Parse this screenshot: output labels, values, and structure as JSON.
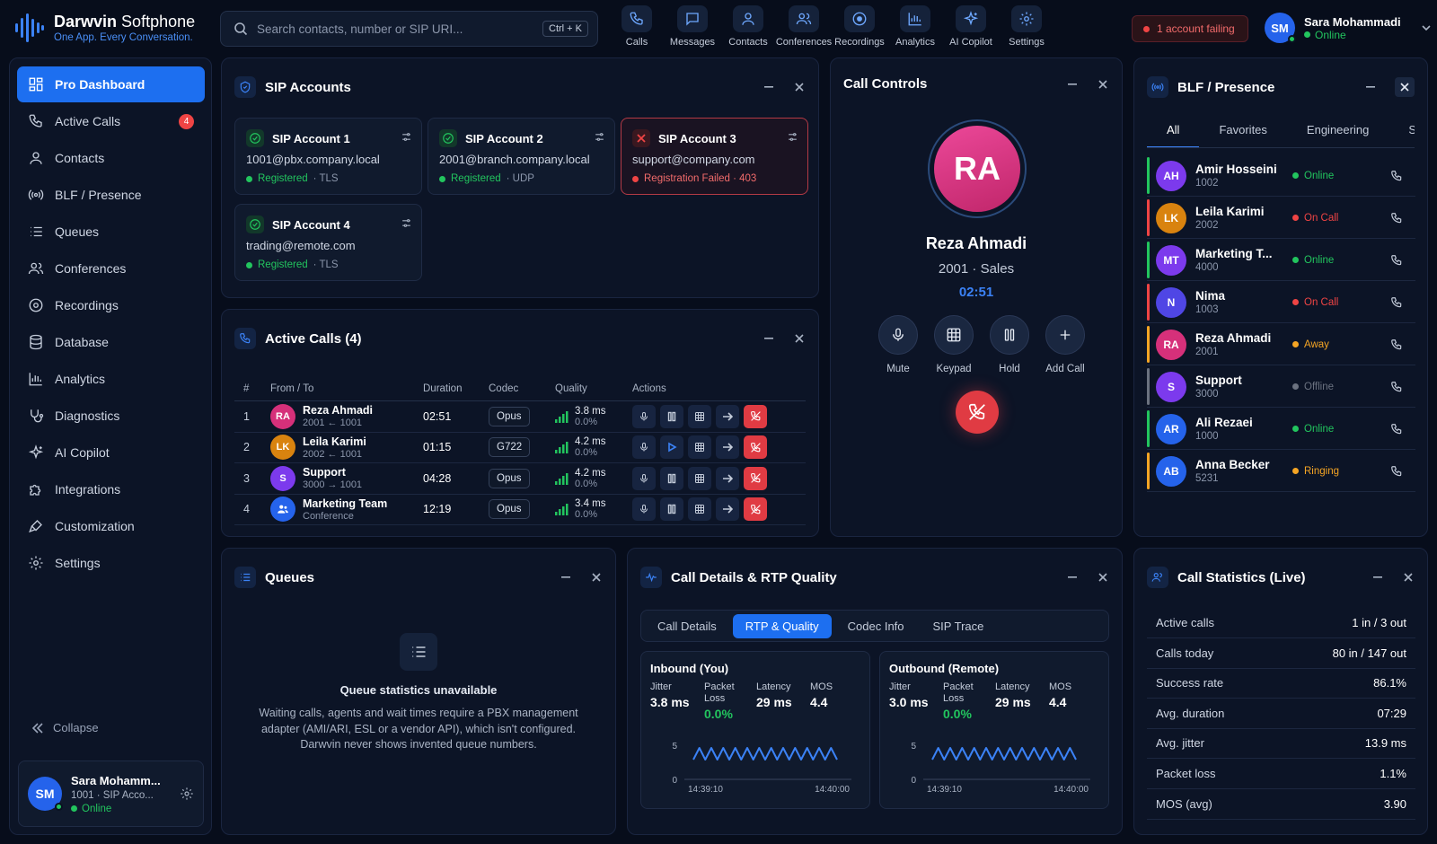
{
  "app": {
    "title_bold": "Darwvin",
    "title_light": "Softphone",
    "tagline": "One App. Every Conversation."
  },
  "search": {
    "placeholder": "Search contacts, number or SIP URI...",
    "shortcut": "Ctrl + K"
  },
  "topnav": [
    "Calls",
    "Messages",
    "Contacts",
    "Conferences",
    "Recordings",
    "Analytics",
    "AI Copilot",
    "Settings"
  ],
  "alert": {
    "text": "1 account failing"
  },
  "user": {
    "initials": "SM",
    "name": "Sara Mohammadi",
    "status": "Online"
  },
  "sidebar": {
    "items": [
      {
        "label": "Pro Dashboard",
        "icon": "dashboard-icon"
      },
      {
        "label": "Active Calls",
        "icon": "phone-icon",
        "badge": "4"
      },
      {
        "label": "Contacts",
        "icon": "user-icon"
      },
      {
        "label": "BLF / Presence",
        "icon": "broadcast-icon"
      },
      {
        "label": "Queues",
        "icon": "list-icon"
      },
      {
        "label": "Conferences",
        "icon": "users-icon"
      },
      {
        "label": "Recordings",
        "icon": "record-icon"
      },
      {
        "label": "Database",
        "icon": "database-icon"
      },
      {
        "label": "Analytics",
        "icon": "chart-icon"
      },
      {
        "label": "Diagnostics",
        "icon": "stethoscope-icon"
      },
      {
        "label": "AI Copilot",
        "icon": "sparkle-icon"
      },
      {
        "label": "Integrations",
        "icon": "puzzle-icon"
      },
      {
        "label": "Customization",
        "icon": "brush-icon"
      },
      {
        "label": "Settings",
        "icon": "gear-icon"
      }
    ],
    "collapse": "Collapse",
    "profile": {
      "initials": "SM",
      "name": "Sara Mohamm...",
      "sub": "1001 · SIP Acco...",
      "status": "Online"
    }
  },
  "sip_accounts": {
    "title": "SIP Accounts",
    "accounts": [
      {
        "name": "SIP Account 1",
        "uri": "1001@pbx.company.local",
        "status": "Registered",
        "transport": "· TLS",
        "ok": true
      },
      {
        "name": "SIP Account 2",
        "uri": "2001@branch.company.local",
        "status": "Registered",
        "transport": "· UDP",
        "ok": true
      },
      {
        "name": "SIP Account 3",
        "uri": "support@company.com",
        "status": "Registration Failed · 403",
        "transport": "",
        "ok": false
      },
      {
        "name": "SIP Account 4",
        "uri": "trading@remote.com",
        "status": "Registered",
        "transport": "· TLS",
        "ok": true
      }
    ]
  },
  "active_calls": {
    "title": "Active Calls (4)",
    "columns": [
      "#",
      "From / To",
      "Duration",
      "Codec",
      "Quality",
      "Actions"
    ],
    "rows": [
      {
        "n": "1",
        "initials": "RA",
        "color": "#d6307a",
        "name": "Reza Ahmadi",
        "route": "2001 ← 1001",
        "duration": "02:51",
        "codec": "Opus",
        "latency": "3.8 ms",
        "loss": "0.0%",
        "hold_state": "pause"
      },
      {
        "n": "2",
        "initials": "LK",
        "color": "#d9830f",
        "name": "Leila Karimi",
        "route": "2002 ← 1001",
        "duration": "01:15",
        "codec": "G722",
        "latency": "4.2 ms",
        "loss": "0.0%",
        "hold_state": "play"
      },
      {
        "n": "3",
        "initials": "S",
        "color": "#7c3aed",
        "name": "Support",
        "route": "3000 → 1001",
        "duration": "04:28",
        "codec": "Opus",
        "latency": "4.2 ms",
        "loss": "0.0%",
        "hold_state": "pause"
      },
      {
        "n": "4",
        "initials": "",
        "color": "#2563eb",
        "name": "Marketing Team",
        "route": "Conference",
        "duration": "12:19",
        "codec": "Opus",
        "latency": "3.4 ms",
        "loss": "0.0%",
        "hold_state": "pause"
      }
    ]
  },
  "call_controls": {
    "title": "Call Controls",
    "initials": "RA",
    "name": "Reza Ahmadi",
    "sub": "2001 · Sales",
    "timer": "02:51",
    "buttons": [
      "Mute",
      "Keypad",
      "Hold",
      "Add Call"
    ]
  },
  "blf": {
    "title": "BLF / Presence",
    "tabs": [
      "All",
      "Favorites",
      "Engineering",
      "Suppor"
    ],
    "entries": [
      {
        "initials": "AH",
        "color": "#7c3aed",
        "name": "Amir Hosseini",
        "ext": "1002",
        "status": "Online",
        "scolor": "#22c55e"
      },
      {
        "initials": "LK",
        "color": "#d9830f",
        "name": "Leila Karimi",
        "ext": "2002",
        "status": "On Call",
        "scolor": "#ef4444"
      },
      {
        "initials": "MT",
        "color": "#7c3aed",
        "name": "Marketing T...",
        "ext": "4000",
        "status": "Online",
        "scolor": "#22c55e"
      },
      {
        "initials": "N",
        "color": "#4f46e5",
        "name": "Nima",
        "ext": "1003",
        "status": "On Call",
        "scolor": "#ef4444"
      },
      {
        "initials": "RA",
        "color": "#d6307a",
        "name": "Reza Ahmadi",
        "ext": "2001",
        "status": "Away",
        "scolor": "#f5a524"
      },
      {
        "initials": "S",
        "color": "#7c3aed",
        "name": "Support",
        "ext": "3000",
        "status": "Offline",
        "scolor": "#6b7280"
      },
      {
        "initials": "AR",
        "color": "#2563eb",
        "name": "Ali Rezaei",
        "ext": "1000",
        "status": "Online",
        "scolor": "#22c55e"
      },
      {
        "initials": "AB",
        "color": "#2563eb",
        "name": "Anna Becker",
        "ext": "5231",
        "status": "Ringing",
        "scolor": "#f5a524"
      }
    ]
  },
  "queues": {
    "title": "Queues",
    "empty_title": "Queue statistics unavailable",
    "empty_text": "Waiting calls, agents and wait times require a PBX management adapter (AMI/ARI, ESL or a vendor API), which isn't configured. Darwvin never shows invented queue numbers."
  },
  "rtp": {
    "title": "Call Details & RTP Quality",
    "tabs": [
      "Call Details",
      "RTP & Quality",
      "Codec Info",
      "SIP Trace"
    ],
    "inbound": {
      "title": "Inbound (You)",
      "jitter": "3.8 ms",
      "loss": "0.0%",
      "latency": "29 ms",
      "mos": "4.4",
      "y_max": "5",
      "y_min": "0",
      "t_start": "14:39:10",
      "t_end": "14:40:00"
    },
    "outbound": {
      "title": "Outbound (Remote)",
      "jitter": "3.0 ms",
      "loss": "0.0%",
      "latency": "29 ms",
      "mos": "4.4",
      "y_max": "5",
      "y_min": "0",
      "t_start": "14:39:10",
      "t_end": "14:40:00"
    },
    "labels": {
      "jitter": "Jitter",
      "loss": "Packet Loss",
      "latency": "Latency",
      "mos": "MOS"
    }
  },
  "stats": {
    "title": "Call Statistics (Live)",
    "rows": [
      {
        "label": "Active calls",
        "value": "1 in / 3 out"
      },
      {
        "label": "Calls today",
        "value": "80 in / 147 out"
      },
      {
        "label": "Success rate",
        "value": "86.1%"
      },
      {
        "label": "Avg. duration",
        "value": "07:29"
      },
      {
        "label": "Avg. jitter",
        "value": "13.9 ms"
      },
      {
        "label": "Packet loss",
        "value": "1.1%"
      },
      {
        "label": "MOS (avg)",
        "value": "3.90"
      }
    ]
  },
  "colors": {
    "accent": "#1d6ff0",
    "ok": "#22c55e",
    "error": "#ef4444",
    "warn": "#f5a524",
    "bg": "#070d1b",
    "panel": "#0c1426"
  }
}
